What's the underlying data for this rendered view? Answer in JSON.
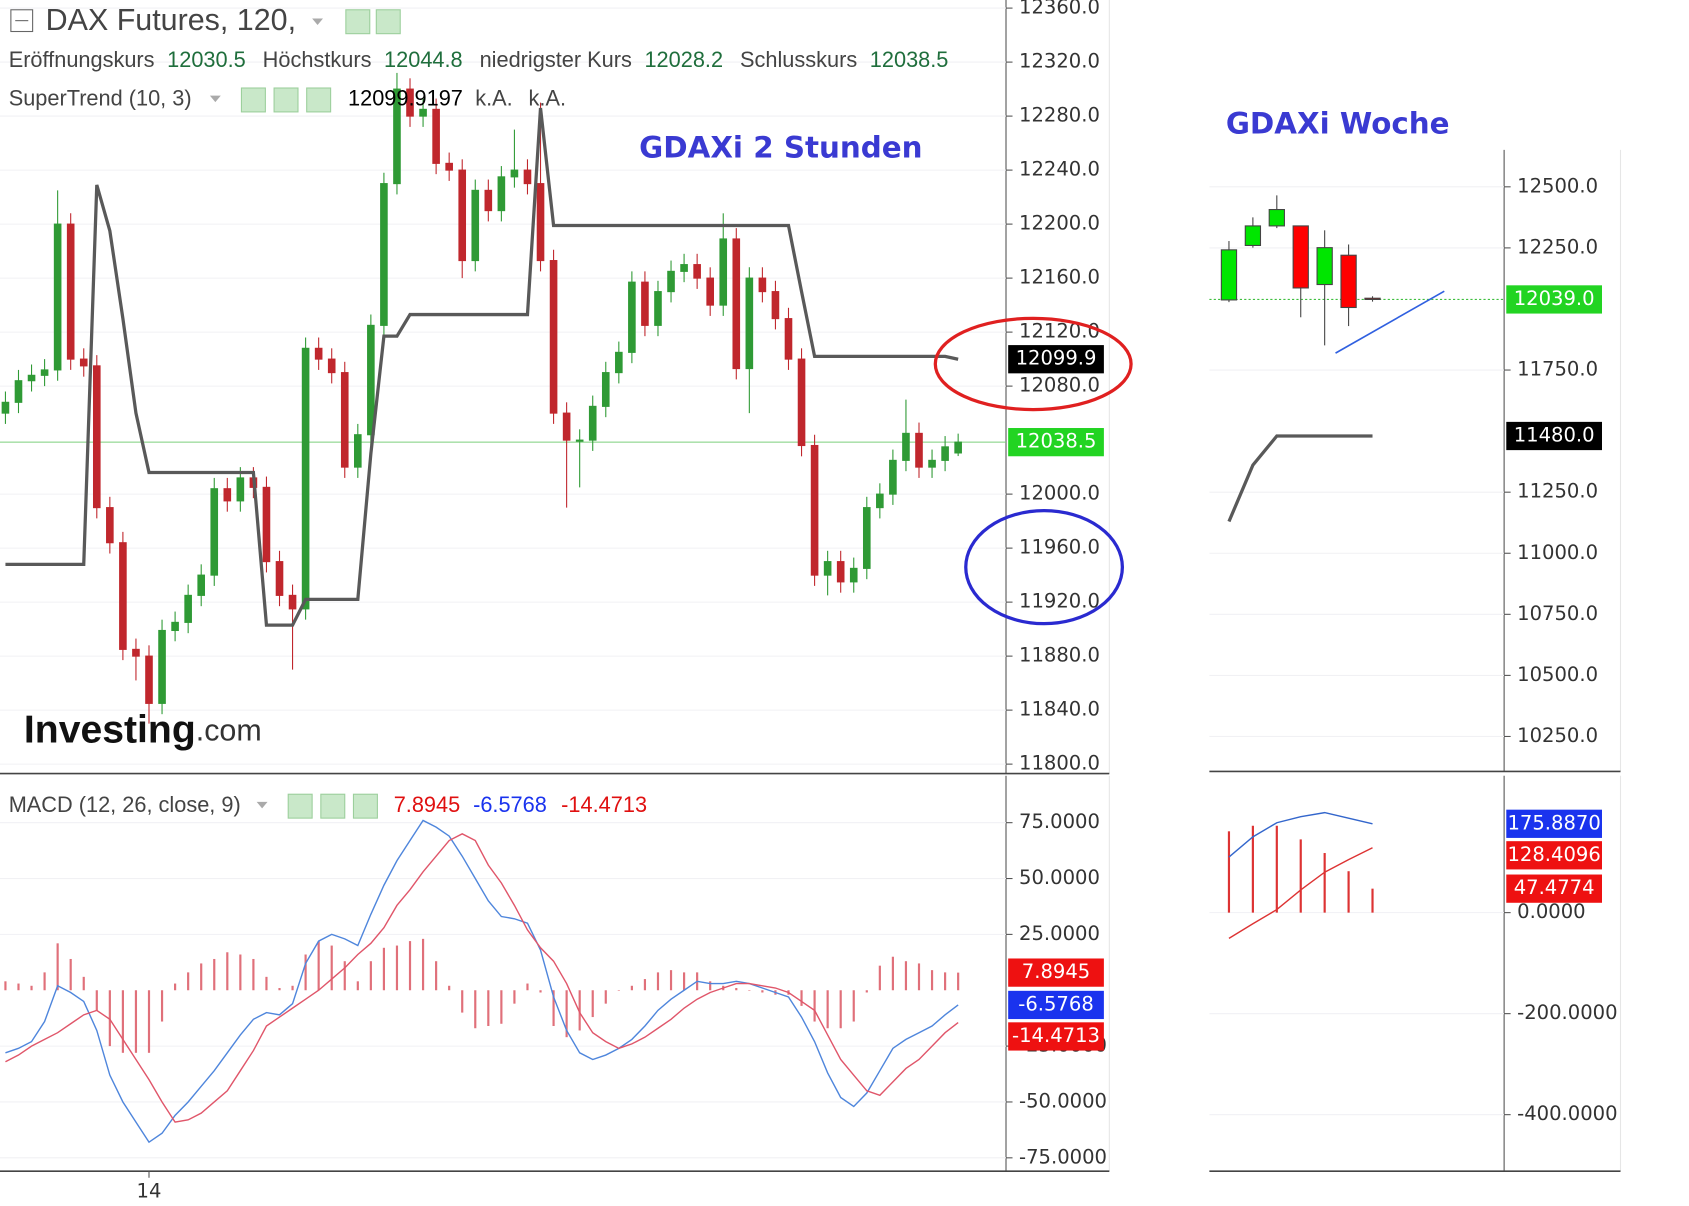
{
  "header": {
    "title": "DAX Futures, 120,",
    "ohlc_labels": [
      "Eröffnungskurs",
      "Höchstkurs",
      "niedrigster Kurs",
      "Schlusskurs"
    ],
    "supertrend_extra": [
      "k.A.",
      "k.A."
    ],
    "logo": [
      "Investing",
      ".com"
    ]
  },
  "chart_data": [
    {
      "type": "candlestick",
      "title": "GDAXi 2 Stunden",
      "categories": [
        null,
        null,
        null,
        null,
        null,
        null,
        null,
        null,
        null,
        null,
        null,
        "14",
        null,
        null,
        null,
        null,
        null,
        null,
        null,
        null,
        null,
        null,
        null,
        null,
        null,
        null,
        null,
        null,
        null,
        null,
        null,
        null,
        null,
        null,
        null,
        null,
        null,
        null,
        null,
        null,
        null,
        null,
        null,
        null,
        null,
        null,
        null,
        null,
        null,
        null,
        null,
        null,
        null,
        null,
        null,
        null,
        null,
        null,
        null,
        null,
        null,
        null,
        null,
        null,
        null,
        null,
        null,
        null,
        null,
        null,
        null,
        null,
        null,
        null
      ],
      "open": [
        12060,
        12068,
        12084,
        12088,
        12092,
        12200,
        12100,
        12095,
        11990,
        11964,
        11885,
        11880,
        11845,
        11899,
        11905,
        11925,
        11940,
        12004,
        11995,
        12012,
        12005,
        11950,
        11925,
        11915,
        12108,
        12100,
        12090,
        12020,
        12044,
        12125,
        12230,
        12300,
        12280,
        12285,
        12245,
        12240,
        12173,
        12225,
        12210,
        12235,
        12240,
        12230,
        12173,
        12060,
        12040,
        12040,
        12065,
        12090,
        12105,
        12157,
        12125,
        12150,
        12165,
        12170,
        12160,
        12140,
        12189,
        12093,
        12160,
        12150,
        12130,
        12100,
        12036,
        11940,
        11950,
        11935,
        11945,
        11990,
        12000,
        12025,
        12045,
        12020,
        12025,
        12030.5
      ],
      "high": [
        12076,
        12092,
        12096,
        12100,
        12225,
        12208,
        12108,
        12103,
        11998,
        11972,
        11893,
        11888,
        11907,
        11913,
        11933,
        11948,
        12012,
        12012,
        12020,
        12020,
        12013,
        11958,
        11933,
        12116,
        12116,
        12108,
        12098,
        12052,
        12133,
        12238,
        12312,
        12308,
        12293,
        12293,
        12253,
        12248,
        12233,
        12233,
        12243,
        12270,
        12248,
        12290,
        12181,
        12068,
        12048,
        12073,
        12098,
        12113,
        12165,
        12165,
        12158,
        12173,
        12178,
        12178,
        12168,
        12208,
        12197,
        12168,
        12168,
        12158,
        12138,
        12108,
        12044,
        11958,
        11958,
        11953,
        11998,
        12008,
        12033,
        12070,
        12053,
        12033,
        12043,
        12044.8
      ],
      "low": [
        12052,
        12060,
        12076,
        12080,
        12084,
        12092,
        12087,
        11982,
        11956,
        11877,
        11862,
        11830,
        11837,
        11891,
        11897,
        11917,
        11932,
        11987,
        11987,
        11997,
        11942,
        11917,
        11870,
        11907,
        12092,
        12082,
        12012,
        12012,
        12036,
        12117,
        12222,
        12272,
        12272,
        12237,
        12232,
        12160,
        12165,
        12202,
        12202,
        12227,
        12222,
        12165,
        12052,
        11990,
        12005,
        12032,
        12057,
        12082,
        12097,
        12117,
        12117,
        12142,
        12157,
        12152,
        12132,
        12132,
        12085,
        12060,
        12142,
        12122,
        12092,
        12028,
        11932,
        11925,
        11927,
        11927,
        11937,
        11982,
        11992,
        12017,
        12012,
        12012,
        12017,
        12028.2
      ],
      "close": [
        12068,
        12084,
        12088,
        12092,
        12200,
        12100,
        12095,
        11990,
        11964,
        11885,
        11880,
        11845,
        11899,
        11905,
        11925,
        11940,
        12004,
        11995,
        12012,
        12005,
        11950,
        11925,
        11915,
        12108,
        12100,
        12090,
        12020,
        12044,
        12125,
        12230,
        12300,
        12280,
        12285,
        12245,
        12240,
        12173,
        12225,
        12210,
        12235,
        12240,
        12230,
        12173,
        12060,
        12040,
        12040,
        12065,
        12090,
        12105,
        12157,
        12125,
        12150,
        12165,
        12170,
        12160,
        12140,
        12189,
        12093,
        12160,
        12150,
        12130,
        12100,
        12036,
        11940,
        11950,
        11935,
        11945,
        11990,
        12000,
        12025,
        12045,
        12020,
        12025,
        12035,
        12038.5
      ],
      "up_color": "#2f9a35",
      "down_color": "#c0272d",
      "series": [
        {
          "name": "SuperTrend (10, 3)",
          "color": "#595959",
          "values": [
            11948,
            11948,
            11948,
            11948,
            11948,
            11948,
            11948,
            12229,
            12195,
            12130,
            12060,
            12016,
            12016,
            12016,
            12016,
            12016,
            12016,
            12016,
            12016,
            12016,
            11903,
            11903,
            11903,
            11922,
            11922,
            11922,
            11922,
            11922,
            12030,
            12117,
            12117,
            12133,
            12133,
            12133,
            12133,
            12133,
            12133,
            12133,
            12133,
            12133,
            12133,
            12286,
            12199,
            12199,
            12199,
            12199,
            12199,
            12199,
            12199,
            12199,
            12199,
            12199,
            12199,
            12199,
            12199,
            12199,
            12199,
            12199,
            12199,
            12199,
            12199,
            12150,
            12102,
            12102,
            12102,
            12102,
            12102,
            12102,
            12102,
            12102,
            12102,
            12102,
            12102,
            12099.9197
          ]
        }
      ],
      "ylim": [
        11793,
        12366
      ],
      "yticks": [
        {
          "value": 12360,
          "label": "12360.0"
        },
        {
          "value": 12320,
          "label": "12320.0"
        },
        {
          "value": 12280,
          "label": "12280.0"
        },
        {
          "value": 12240,
          "label": "12240.0"
        },
        {
          "value": 12200,
          "label": "12200.0"
        },
        {
          "value": 12160,
          "label": "12160.0"
        },
        {
          "value": 12120,
          "label": "12120.0"
        },
        {
          "value": 12080,
          "label": "12080.0"
        },
        {
          "value": 12000,
          "label": "12000.0"
        },
        {
          "value": 11960,
          "label": "11960.0"
        },
        {
          "value": 11920,
          "label": "11920.0"
        },
        {
          "value": 11880,
          "label": "11880.0"
        },
        {
          "value": 11840,
          "label": "11840.0"
        },
        {
          "value": 11800,
          "label": "11800.0"
        }
      ],
      "grid": true,
      "last_line_color": "#7ccf7c",
      "badges": [
        {
          "value": 12099.9197,
          "label": "12099.9",
          "color": "#000000"
        },
        {
          "value": 12038.5,
          "color": "#22d422"
        }
      ]
    },
    {
      "type": "line",
      "title": "MACD (12, 26, close, 9)",
      "categories": [
        null,
        null,
        null,
        null,
        null,
        null,
        null,
        null,
        null,
        null,
        null,
        "14",
        null,
        null,
        null,
        null,
        null,
        null,
        null,
        null,
        null,
        null,
        null,
        null,
        null,
        null,
        null,
        null,
        null,
        null,
        null,
        null,
        null,
        null,
        null,
        null,
        null,
        null,
        null,
        null,
        null,
        null,
        null,
        null,
        null,
        null,
        null,
        null,
        null,
        null,
        null,
        null,
        null,
        null,
        null,
        null,
        null,
        null,
        null,
        null,
        null,
        null,
        null,
        null,
        null,
        null,
        null,
        null,
        null,
        null,
        null,
        null,
        null,
        null
      ],
      "histogram": {
        "color": "#e0707a",
        "values": [
          4,
          3,
          2,
          8,
          21,
          14,
          6,
          -9,
          -25,
          -28,
          -28,
          -28,
          -14,
          3,
          8,
          12,
          14,
          17,
          16,
          14,
          6,
          1,
          2,
          16,
          22,
          20,
          13,
          4,
          13,
          19,
          20,
          22,
          23,
          13,
          2,
          -10,
          -17,
          -16,
          -15,
          -6,
          3,
          -1,
          -16,
          -21,
          -18,
          -12,
          -6,
          0,
          2,
          5,
          8,
          9,
          8,
          8,
          4,
          2,
          1,
          0,
          -1,
          -2,
          -2,
          -7,
          -14,
          -17,
          -17,
          -14,
          -1,
          11,
          15,
          13,
          12,
          9,
          8,
          7.8945
        ]
      },
      "series": [
        {
          "color": "#4f86dc",
          "values": [
            -28,
            -26,
            -23,
            -14,
            2,
            -1,
            -5,
            -18,
            -38,
            -50,
            -59,
            -68,
            -64,
            -56,
            -50,
            -43,
            -36,
            -28,
            -20,
            -13,
            -10,
            -11,
            -6,
            12,
            22,
            25,
            23,
            20,
            34,
            47,
            58,
            67,
            76,
            73,
            69,
            60,
            50,
            40,
            33,
            32,
            30,
            18,
            -3,
            -18,
            -28,
            -31,
            -29,
            -26,
            -22,
            -16,
            -9,
            -4,
            0,
            4,
            3,
            3,
            4,
            3,
            1,
            -1,
            -3,
            -12,
            -23,
            -37,
            -48,
            -52,
            -46,
            -36,
            -26,
            -22,
            -19,
            -16,
            -11,
            -6.5768
          ]
        },
        {
          "color": "#e0566a",
          "values": [
            -32,
            -29,
            -25,
            -22,
            -19,
            -15,
            -11,
            -9,
            -13,
            -22,
            -31,
            -40,
            -50,
            -59,
            -58,
            -55,
            -50,
            -45,
            -36,
            -27,
            -16,
            -12,
            -8,
            -4,
            0,
            5,
            10,
            16,
            21,
            28,
            38,
            45,
            53,
            60,
            67,
            70,
            67,
            56,
            48,
            38,
            27,
            19,
            13,
            3,
            -10,
            -19,
            -23,
            -26,
            -24,
            -21,
            -17,
            -13,
            -8,
            -4,
            -1,
            1,
            3,
            3,
            2,
            1,
            -1,
            -5,
            -9,
            -20,
            -31,
            -38,
            -45,
            -47,
            -41,
            -35,
            -31,
            -25,
            -19,
            -14.4713
          ]
        }
      ],
      "ylim": [
        -81,
        96
      ],
      "yticks": [
        {
          "value": 75,
          "label": "75.0000"
        },
        {
          "value": 50,
          "label": "50.0000"
        },
        {
          "value": 25,
          "label": "25.0000"
        },
        {
          "value": -25,
          "label": "-25.0000"
        },
        {
          "value": -50,
          "label": "-50.0000"
        },
        {
          "value": -75,
          "label": "-75.0000"
        }
      ],
      "grid": true,
      "badges": [
        {
          "value": 7.8945,
          "color": "#ee1111"
        },
        {
          "value": -6.5768,
          "color": "#1a33ee"
        },
        {
          "value": -14.4713,
          "color": "#ee1111"
        }
      ]
    },
    {
      "type": "candlestick",
      "title": "GDAXi Woche",
      "categories": [
        null,
        null,
        null,
        null,
        null,
        null,
        null
      ],
      "open": [
        12037,
        12260,
        12340,
        12340,
        12100,
        12220,
        12044
      ],
      "high": [
        12278,
        12375,
        12465,
        12340,
        12322,
        12264,
        12052
      ],
      "low": [
        12028,
        12251,
        12331,
        11966,
        11851,
        11930,
        12030
      ],
      "close": [
        12242,
        12340,
        12407,
        12086,
        12251,
        12006,
        12039
      ],
      "up_color": "#00e600",
      "down_color": "#ff0000",
      "outline_color": "#444444",
      "series": [
        {
          "color": "#595959",
          "values": [
            11130,
            11361,
            11480,
            11480,
            11480,
            11480,
            11480
          ]
        }
      ],
      "ylim": [
        10107,
        12651
      ],
      "yticks": [
        {
          "value": 12500,
          "label": "12500.0"
        },
        {
          "value": 12250,
          "label": "12250.0"
        },
        {
          "value": 11750,
          "label": "11750.0"
        },
        {
          "value": 11250,
          "label": "11250.0"
        },
        {
          "value": 11000,
          "label": "11000.0"
        },
        {
          "value": 10750,
          "label": "10750.0"
        },
        {
          "value": 10500,
          "label": "10500.0"
        },
        {
          "value": 10250,
          "label": "10250.0"
        }
      ],
      "grid": true,
      "last_line_color": "#3fbf3f",
      "badges": [
        {
          "value": 12039,
          "label": "12039.0",
          "color": "#22d422"
        },
        {
          "value": 11480,
          "label": "11480.0",
          "color": "#000000"
        }
      ]
    },
    {
      "type": "line",
      "categories": [
        null,
        null,
        null,
        null,
        null,
        null,
        null
      ],
      "histogram": {
        "color": "#dd3333",
        "values": [
          161,
          172,
          172,
          145,
          118,
          82,
          47.4774
        ]
      },
      "series": [
        {
          "color": "#3366cc",
          "values": [
            110,
            150,
            178,
            190,
            198,
            187,
            175.887
          ]
        },
        {
          "color": "#dd3333",
          "values": [
            -51,
            -22,
            6,
            45,
            80,
            105,
            128.4096
          ]
        }
      ],
      "ylim": [
        -512,
        271
      ],
      "yticks": [
        {
          "value": 0,
          "label": "0.0000"
        },
        {
          "value": -200,
          "label": "-200.0000"
        },
        {
          "value": -400,
          "label": "-400.0000"
        }
      ],
      "grid": true,
      "badges": [
        {
          "value": 175.887,
          "label": "175.8870",
          "color": "#1a33ee"
        },
        {
          "value": 128.4096,
          "color": "#ee1111"
        },
        {
          "value": 47.4774,
          "color": "#ee1111"
        }
      ]
    }
  ]
}
